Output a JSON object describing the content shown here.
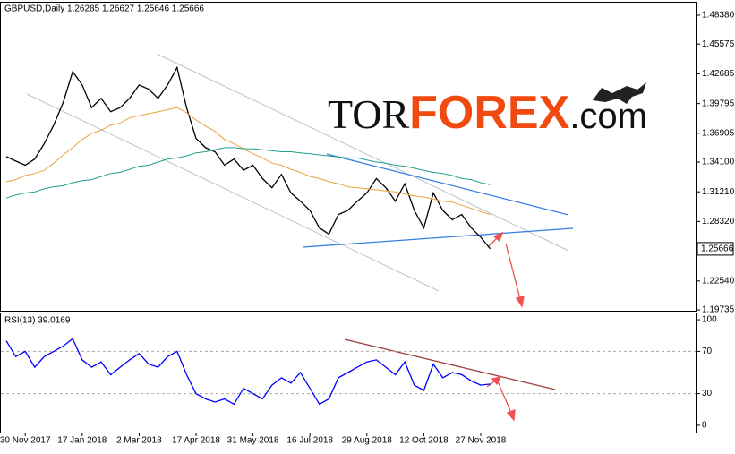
{
  "chart_data": [
    {
      "type": "line",
      "title": "GBPUSD,Daily 1.26285 1.26627 1.25646 1.25666",
      "categories": [
        null,
        null,
        "30 Nov 2017",
        null,
        null,
        null,
        null,
        null,
        "17 Jan 2018",
        null,
        null,
        null,
        null,
        null,
        "2 Mar 2018",
        null,
        null,
        null,
        null,
        null,
        "17 Apr 2018",
        null,
        null,
        null,
        null,
        null,
        "31 May 2018",
        null,
        null,
        null,
        null,
        null,
        "16 Jul 2018",
        null,
        null,
        null,
        null,
        null,
        "29 Aug 2018",
        null,
        null,
        null,
        null,
        null,
        "12 Oct 2018",
        null,
        null,
        null,
        null,
        null,
        "27 Nov 2018",
        null
      ],
      "series": [
        {
          "color": "#000000",
          "values": [
            1.3463,
            1.342,
            1.338,
            1.344,
            1.359,
            1.377,
            1.399,
            1.429,
            1.416,
            1.394,
            1.403,
            1.39,
            1.394,
            1.403,
            1.416,
            1.412,
            1.403,
            1.416,
            1.433,
            1.394,
            1.364,
            1.355,
            1.351,
            1.338,
            1.344,
            1.333,
            1.338,
            1.325,
            1.316,
            1.329,
            1.311,
            1.303,
            1.294,
            1.277,
            1.271,
            1.29,
            1.294,
            1.303,
            1.311,
            1.325,
            1.316,
            1.303,
            1.32,
            1.294,
            1.277,
            1.311,
            1.294,
            1.285,
            1.29,
            1.277,
            1.268,
            1.25666
          ]
        },
        {
          "color": "#e8a33c",
          "values": [
            1.322,
            1.324,
            1.328,
            1.33,
            1.333,
            1.34,
            1.348,
            1.355,
            1.363,
            1.369,
            1.372,
            1.377,
            1.379,
            1.384,
            1.386,
            1.388,
            1.39,
            1.392,
            1.394,
            1.389,
            1.382,
            1.376,
            1.371,
            1.363,
            1.359,
            1.354,
            1.349,
            1.345,
            1.34,
            1.338,
            1.334,
            1.331,
            1.327,
            1.325,
            1.322,
            1.32,
            1.317,
            1.316,
            1.315,
            1.314,
            1.313,
            1.312,
            1.31,
            1.308,
            1.307,
            1.305,
            1.303,
            1.302,
            1.299,
            1.296,
            1.293,
            1.29
          ]
        },
        {
          "color": "#20a090",
          "values": [
            1.306,
            1.309,
            1.311,
            1.312,
            1.315,
            1.317,
            1.318,
            1.321,
            1.323,
            1.324,
            1.327,
            1.33,
            1.331,
            1.334,
            1.337,
            1.338,
            1.341,
            1.344,
            1.345,
            1.347,
            1.35,
            1.351,
            1.353,
            1.355,
            1.355,
            1.354,
            1.354,
            1.353,
            1.352,
            1.351,
            1.351,
            1.35,
            1.349,
            1.348,
            1.347,
            1.346,
            1.345,
            1.345,
            1.343,
            1.341,
            1.34,
            1.338,
            1.337,
            1.335,
            1.333,
            1.331,
            1.33,
            1.328,
            1.325,
            1.324,
            1.321,
            1.319
          ]
        }
      ],
      "ylim": [
        1.1965,
        1.496
      ],
      "yticks": [
        {
          "value": 1.4838,
          "label": "1.48380"
        },
        {
          "value": 1.45575,
          "label": "1.45575"
        },
        {
          "value": 1.42685,
          "label": "1.42685"
        },
        {
          "value": 1.39795,
          "label": "1.39795"
        },
        {
          "value": 1.36905,
          "label": "1.36905"
        },
        {
          "value": 1.341,
          "label": "1.34100"
        },
        {
          "value": 1.3121,
          "label": "1.31210"
        },
        {
          "value": 1.2832,
          "label": "1.28320"
        },
        {
          "value": 1.2254,
          "label": "1.22540"
        },
        {
          "value": 1.19735,
          "label": "1.19735"
        }
      ],
      "last_value": {
        "value": 1.25666,
        "label": "1.25666"
      },
      "grid": false
    },
    {
      "type": "line",
      "title": "RSI(13) 39.0169",
      "series": [
        {
          "color": "#0000ff",
          "values": [
            80,
            65,
            70,
            55,
            65,
            70,
            75,
            82,
            62,
            55,
            60,
            48,
            55,
            62,
            68,
            58,
            55,
            65,
            70,
            48,
            30,
            25,
            22,
            25,
            20,
            35,
            30,
            25,
            38,
            45,
            40,
            50,
            35,
            20,
            25,
            45,
            50,
            55,
            60,
            62,
            55,
            48,
            60,
            38,
            33,
            58,
            45,
            50,
            48,
            42,
            38,
            39.0169
          ]
        }
      ],
      "ylim": [
        -6,
        106
      ],
      "yticks": [
        100,
        70,
        30,
        0
      ],
      "levels": [
        70,
        30
      ]
    }
  ],
  "watermark": {
    "parts": [
      "TOR",
      "FOREX",
      ".com"
    ]
  }
}
